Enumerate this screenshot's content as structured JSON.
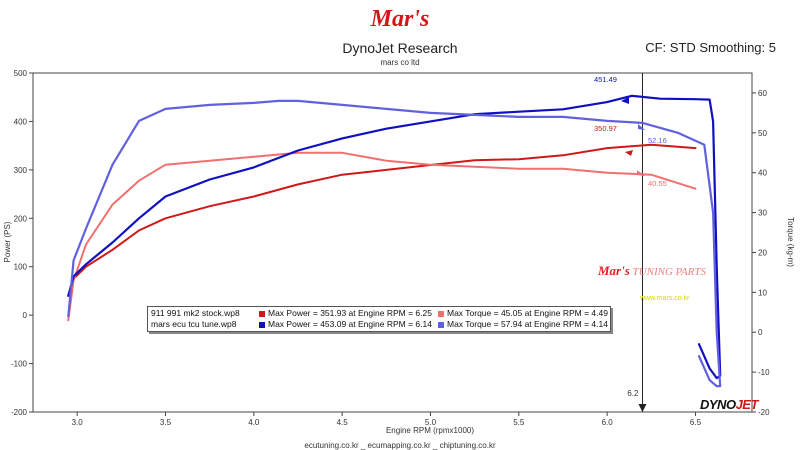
{
  "header": {
    "logo_text": "Mar's",
    "title": "DynoJet Research",
    "subtitle": "mars co ltd",
    "cf_text": "CF: STD Smoothing: 5"
  },
  "footer_text": "ecutuning.co.kr _ ecumapping.co.kr _ chiptuning.co.kr",
  "watermark": {
    "logo": "Mar's",
    "text": "TUNING PARTS",
    "url": "www.mars.co.kr"
  },
  "brand": {
    "dyno": "DYNO",
    "jet": "JET"
  },
  "cursor_label": "6.2",
  "legend": {
    "rows": [
      {
        "file": "911 991 mk2 stock.wp8",
        "power": "Max Power = 351.93 at Engine RPM = 6.25",
        "torque": "Max Torque = 45.05 at Engine RPM = 4.49"
      },
      {
        "file": "mars ecu tcu tune.wp8",
        "power": "Max Power = 453.09 at Engine RPM = 6.14",
        "torque": "Max Torque = 57.94 at Engine RPM = 4.14"
      }
    ]
  },
  "annotations": {
    "tune_power": "451.49",
    "tune_torque": "52.16",
    "stock_power": "350.97",
    "stock_torque": "40.55"
  },
  "colors": {
    "stock_power": "#d01818",
    "stock_torque": "#f07070",
    "tune_power": "#1010c0",
    "tune_torque": "#6060e0"
  },
  "chart_data": {
    "type": "line",
    "xlabel": "Engine RPM (rpmx1000)",
    "ylabel": "Power (PS)",
    "y2label": "Torque (kg-m)",
    "xlim": [
      2.75,
      6.82
    ],
    "ylim": [
      -200,
      500
    ],
    "y2lim": [
      -20,
      65
    ],
    "x_ticks": [
      "3.0",
      "3.5",
      "4.0",
      "4.5",
      "5.0",
      "5.5",
      "6.0",
      "6.5"
    ],
    "y_ticks": [
      "-200",
      "-100",
      "0",
      "100",
      "200",
      "300",
      "400",
      "500"
    ],
    "y2_ticks": [
      "-20",
      "-10",
      "0",
      "10",
      "20",
      "30",
      "40",
      "50",
      "60"
    ],
    "grid": false,
    "cursor_x": 6.2,
    "series": [
      {
        "name": "911 991 mk2 stock.wp8 Power",
        "axis": "left",
        "x": [
          2.95,
          2.98,
          3.05,
          3.2,
          3.35,
          3.5,
          3.75,
          4.0,
          4.25,
          4.5,
          4.75,
          5.0,
          5.25,
          5.5,
          5.75,
          6.0,
          6.25,
          6.5
        ],
        "y": [
          40,
          75,
          100,
          135,
          175,
          200,
          225,
          245,
          270,
          290,
          300,
          310,
          320,
          322,
          330,
          345,
          352,
          345
        ]
      },
      {
        "name": "911 991 mk2 stock.wp8 Torque",
        "axis": "right",
        "x": [
          2.95,
          2.98,
          3.05,
          3.2,
          3.35,
          3.5,
          3.75,
          4.0,
          4.25,
          4.5,
          4.75,
          5.0,
          5.25,
          5.5,
          5.75,
          6.0,
          6.25,
          6.5
        ],
        "y": [
          3,
          13,
          22,
          32,
          38,
          42,
          43,
          44,
          45,
          45,
          43,
          42,
          41.5,
          41,
          41,
          40,
          39.5,
          36
        ]
      },
      {
        "name": "mars ecu tcu tune.wp8 Power",
        "axis": "left",
        "x": [
          2.95,
          2.98,
          3.05,
          3.2,
          3.35,
          3.5,
          3.75,
          4.0,
          4.25,
          4.5,
          4.75,
          5.0,
          5.25,
          5.5,
          5.75,
          6.0,
          6.14,
          6.3,
          6.5,
          6.58,
          6.6,
          6.62,
          6.64,
          6.62,
          6.58,
          6.55,
          6.52
        ],
        "y": [
          40,
          80,
          105,
          150,
          200,
          245,
          280,
          305,
          340,
          365,
          385,
          400,
          415,
          420,
          425,
          440,
          453,
          447,
          446,
          445,
          400,
          100,
          -125,
          -130,
          -110,
          -85,
          -60
        ]
      },
      {
        "name": "mars ecu tcu tune.wp8 Torque",
        "axis": "right",
        "x": [
          2.95,
          2.98,
          3.05,
          3.2,
          3.35,
          3.5,
          3.75,
          4.0,
          4.14,
          4.25,
          4.5,
          4.75,
          5.0,
          5.25,
          5.5,
          5.75,
          6.0,
          6.2,
          6.4,
          6.55,
          6.6,
          6.62,
          6.64,
          6.62,
          6.58,
          6.55,
          6.52
        ],
        "y": [
          4,
          18,
          26,
          42,
          53,
          56,
          57,
          57.5,
          58,
          58,
          57,
          56,
          55,
          54.5,
          54,
          54,
          53,
          52.5,
          50,
          47,
          30,
          0,
          -13.5,
          -13.5,
          -12,
          -9,
          -6
        ]
      }
    ]
  }
}
